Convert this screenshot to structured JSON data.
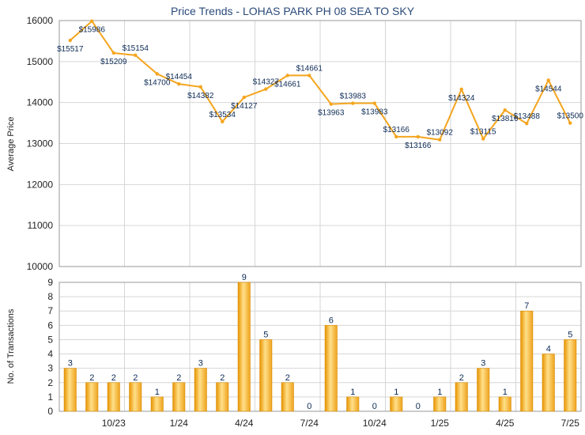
{
  "title": "Price Trends - LOHAS PARK PH 08 SEA TO SKY",
  "chart_data": [
    {
      "type": "line",
      "title": "Price Trends - LOHAS PARK PH 08 SEA TO SKY",
      "ylabel": "Average Price",
      "ylim": [
        10000,
        16000
      ],
      "yticks": [
        "16000",
        "15000",
        "14000",
        "13000",
        "12000",
        "11000",
        "10000"
      ],
      "grid": true,
      "color": "#f5a51e",
      "x": [
        "8/23",
        "9/23",
        "10/23",
        "11/23",
        "12/23",
        "1/24",
        "2/24",
        "3/24",
        "4/24",
        "5/24",
        "6/24",
        "7/24",
        "8/24",
        "9/24",
        "10/24",
        "11/24",
        "12/24",
        "1/25",
        "2/25",
        "3/25",
        "4/25",
        "5/25",
        "6/25",
        "7/25"
      ],
      "values": [
        15517,
        15986,
        15209,
        15154,
        14700,
        14454,
        14382,
        13534,
        14127,
        14327,
        14661,
        14661,
        13963,
        13983,
        13983,
        13166,
        13166,
        13092,
        14324,
        13115,
        13816,
        13488,
        14544,
        13500
      ],
      "labels": [
        "$15517",
        "$15986",
        "$15209",
        "$15154",
        "$14700",
        "$14454",
        "$14382",
        "$13534",
        "$14127",
        "$14327",
        "$14661",
        "$14661",
        "$13963",
        "$13983",
        "$13983",
        "$13166",
        "$13166",
        "$13092",
        "$14324",
        "$13115",
        "$13816",
        "$13488",
        "$14544",
        "$13500"
      ]
    },
    {
      "type": "bar",
      "ylabel": "No. of Transactions",
      "ylim": [
        0,
        9
      ],
      "yticks": [
        "9",
        "8",
        "7",
        "6",
        "5",
        "4",
        "3",
        "2",
        "1",
        "0"
      ],
      "xtick_labels": [
        "10/23",
        "1/24",
        "4/24",
        "7/24",
        "10/24",
        "1/25",
        "4/25",
        "7/25"
      ],
      "grid": true,
      "color": "#f5a51e",
      "categories": [
        "8/23",
        "9/23",
        "10/23",
        "11/23",
        "12/23",
        "1/24",
        "2/24",
        "3/24",
        "4/24",
        "5/24",
        "6/24",
        "7/24",
        "8/24",
        "9/24",
        "10/24",
        "11/24",
        "12/24",
        "1/25",
        "2/25",
        "3/25",
        "4/25",
        "5/25",
        "6/25",
        "7/25"
      ],
      "values": [
        3,
        2,
        2,
        2,
        1,
        2,
        3,
        2,
        9,
        5,
        2,
        0,
        6,
        1,
        0,
        1,
        0,
        1,
        2,
        3,
        1,
        7,
        4,
        5
      ],
      "labels": [
        "3",
        "2",
        "2",
        "2",
        "1",
        "2",
        "3",
        "2",
        "9",
        "5",
        "2",
        "0",
        "6",
        "1",
        "0",
        "1",
        "0",
        "1",
        "2",
        "3",
        "1",
        "7",
        "4",
        "5"
      ]
    }
  ]
}
